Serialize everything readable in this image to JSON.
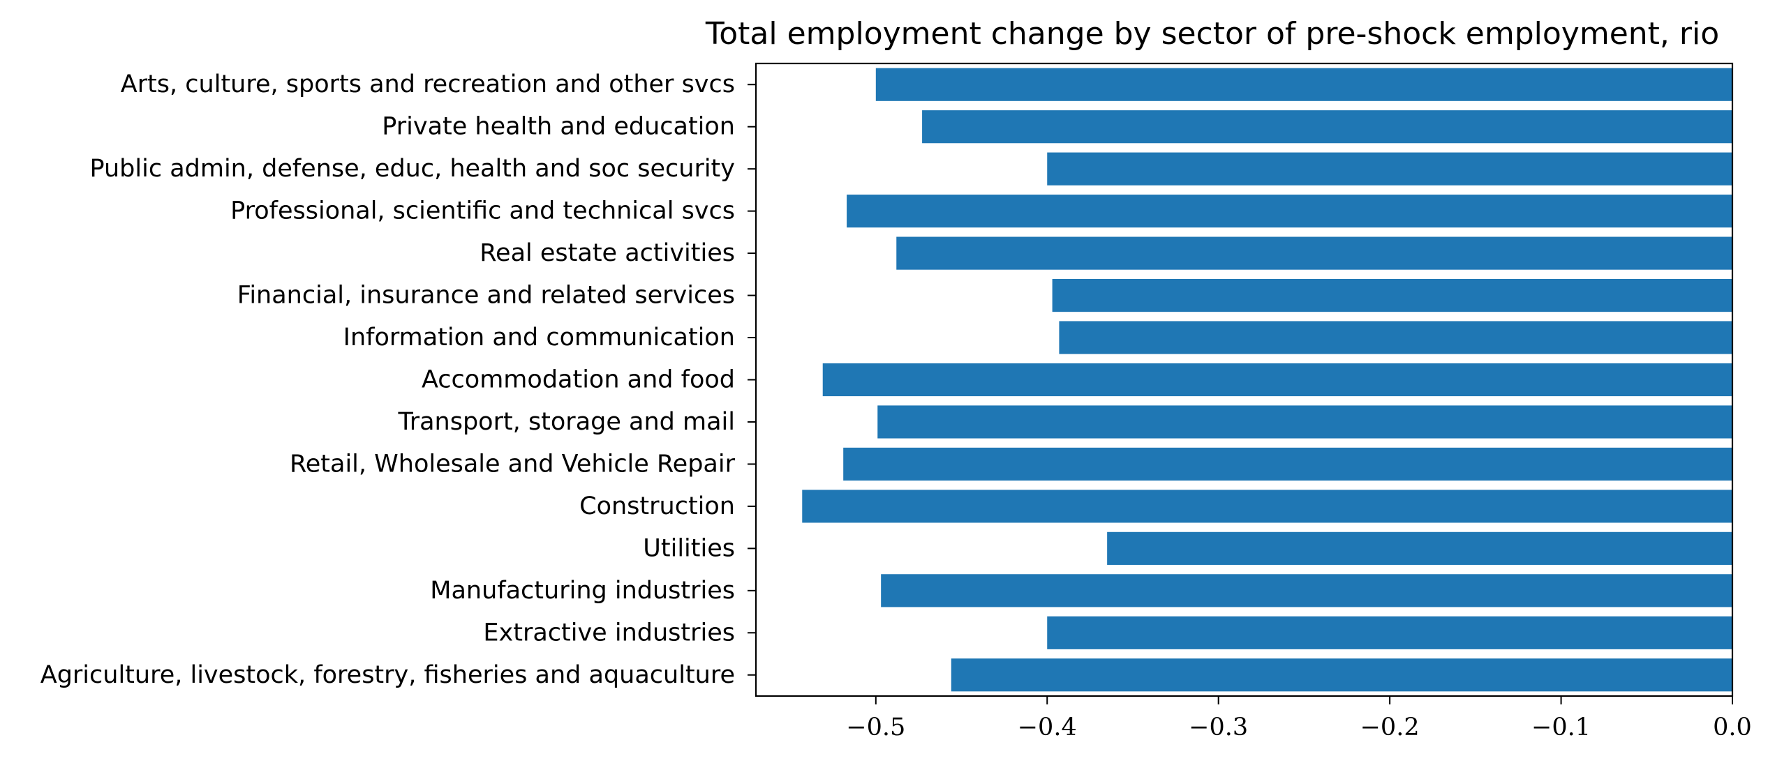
{
  "chart_data": {
    "type": "bar",
    "orientation": "horizontal",
    "title": "Total employment change by sector of pre-shock employment, rio",
    "xlabel": "",
    "ylabel": "",
    "xlim": [
      -0.57,
      0.0
    ],
    "xticks": [
      -0.5,
      -0.4,
      -0.3,
      -0.2,
      -0.1,
      0.0
    ],
    "xtick_labels": [
      "−0.5",
      "−0.4",
      "−0.3",
      "−0.2",
      "−0.1",
      "0.0"
    ],
    "bar_color": "#1f77b4",
    "grid": false,
    "legend": false,
    "categories": [
      "Agriculture, livestock, forestry, fisheries and aquaculture",
      "Extractive industries",
      "Manufacturing industries",
      "Utilities",
      "Construction",
      "Retail, Wholesale and Vehicle Repair",
      "Transport, storage and mail",
      "Accommodation and food",
      "Information and communication",
      "Financial, insurance and related services",
      "Real estate activities",
      "Professional, scientific and technical svcs",
      "Public admin, defense, educ, health and soc security",
      "Private health and education",
      "Arts, culture, sports and recreation and other svcs"
    ],
    "values": [
      -0.456,
      -0.4,
      -0.497,
      -0.365,
      -0.543,
      -0.519,
      -0.499,
      -0.531,
      -0.393,
      -0.397,
      -0.488,
      -0.517,
      -0.4,
      -0.473,
      -0.5
    ]
  }
}
